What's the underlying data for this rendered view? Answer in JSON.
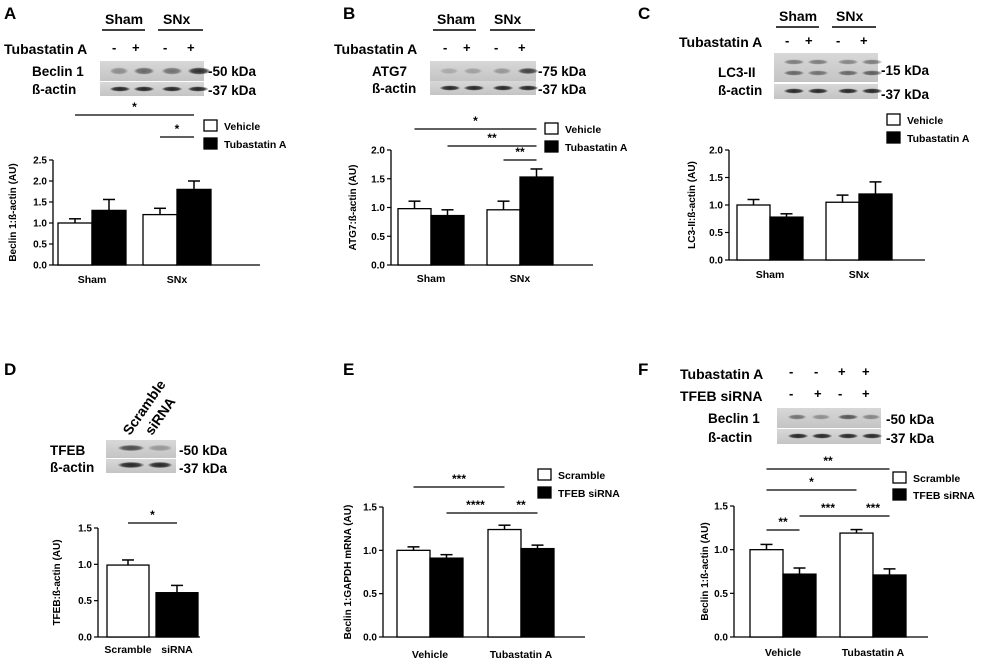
{
  "units": {
    "kda_50": "-50 kDa",
    "kda_37": "-37 kDa",
    "kda_75": "-75 kDa",
    "kda_15": "-15 kDa"
  },
  "blots": {
    "A": {
      "letter": "A",
      "group_left": "Sham",
      "group_right": "SNx",
      "treat_label": "Tubastatin A",
      "signs": [
        "-",
        "+",
        "-",
        "+"
      ],
      "band1": "Beclin 1",
      "band2": "ß-actin"
    },
    "B": {
      "letter": "B",
      "group_left": "Sham",
      "group_right": "SNx",
      "treat_label": "Tubastatin A",
      "signs": [
        "-",
        "+",
        "-",
        "+"
      ],
      "band1": "ATG7",
      "band2": "ß-actin"
    },
    "C": {
      "letter": "C",
      "group_left": "Sham",
      "group_right": "SNx",
      "treat_label": "Tubastatin A",
      "signs": [
        "-",
        "+",
        "-",
        "+"
      ],
      "band1": "LC3-II",
      "band2": "ß-actin"
    },
    "D": {
      "letter": "D",
      "lane1": "Scramble",
      "lane2": "siRNA",
      "band1": "TFEB",
      "band2": "ß-actin"
    },
    "E": {
      "letter": "E"
    },
    "F": {
      "letter": "F",
      "row1_label": "Tubastatin A",
      "row1_signs": [
        "-",
        "-",
        "+",
        "+"
      ],
      "row2_label": "TFEB siRNA",
      "row2_signs": [
        "-",
        "+",
        "-",
        "+"
      ],
      "band1": "Beclin 1",
      "band2": "ß-actin"
    }
  },
  "chart_data": [
    {
      "panel": "A",
      "type": "bar",
      "ylabel": "Beclin 1:ß-actin (AU)",
      "ylim": [
        0,
        2.5
      ],
      "yticks": [
        "0.0",
        "0.5",
        "1.0",
        "1.5",
        "2.0",
        "2.5"
      ],
      "yticks_num": [
        0,
        0.5,
        1,
        1.5,
        2,
        2.5
      ],
      "categories": [
        "Sham",
        "SNx"
      ],
      "series": [
        {
          "name": "Vehicle",
          "fill": "#ffffff",
          "values": [
            1.0,
            1.2
          ],
          "errors": [
            0.1,
            0.15
          ]
        },
        {
          "name": "Tubastatin A",
          "fill": "#000000",
          "values": [
            1.3,
            1.8
          ],
          "errors": [
            0.26,
            0.2
          ]
        }
      ],
      "significance": [
        {
          "from": [
            0,
            0
          ],
          "to": [
            1,
            1
          ],
          "label": "*"
        },
        {
          "from": [
            1,
            0
          ],
          "to": [
            1,
            1
          ],
          "label": "*"
        }
      ]
    },
    {
      "panel": "B",
      "type": "bar",
      "ylabel": "ATG7:ß-actin (AU)",
      "ylim": [
        0,
        2.0
      ],
      "yticks": [
        "0.0",
        "0.5",
        "1.0",
        "1.5",
        "2.0"
      ],
      "yticks_num": [
        0,
        0.5,
        1,
        1.5,
        2
      ],
      "categories": [
        "Sham",
        "SNx"
      ],
      "series": [
        {
          "name": "Vehicle",
          "fill": "#ffffff",
          "values": [
            0.98,
            0.96
          ],
          "errors": [
            0.13,
            0.15
          ]
        },
        {
          "name": "Tubastatin A",
          "fill": "#000000",
          "values": [
            0.86,
            1.53
          ],
          "errors": [
            0.1,
            0.14
          ]
        }
      ],
      "significance": [
        {
          "from": [
            0,
            0
          ],
          "to": [
            1,
            1
          ],
          "label": "*"
        },
        {
          "from": [
            0,
            1
          ],
          "to": [
            1,
            1
          ],
          "label": "**"
        },
        {
          "from": [
            1,
            0
          ],
          "to": [
            1,
            1
          ],
          "label": "**"
        }
      ]
    },
    {
      "panel": "C",
      "type": "bar",
      "ylabel": "LC3-II:ß-actin (AU)",
      "ylim": [
        0,
        2.0
      ],
      "yticks": [
        "0.0",
        "0.5",
        "1.0",
        "1.5",
        "2.0"
      ],
      "yticks_num": [
        0,
        0.5,
        1,
        1.5,
        2
      ],
      "categories": [
        "Sham",
        "SNx"
      ],
      "series": [
        {
          "name": "Vehicle",
          "fill": "#ffffff",
          "values": [
            1.0,
            1.05
          ],
          "errors": [
            0.1,
            0.13
          ]
        },
        {
          "name": "Tubastatin A",
          "fill": "#000000",
          "values": [
            0.78,
            1.2
          ],
          "errors": [
            0.06,
            0.22
          ]
        }
      ],
      "significance": []
    },
    {
      "panel": "D",
      "type": "bar",
      "ylabel": "TFEB:ß-actin (AU)",
      "ylim": [
        0,
        1.5
      ],
      "yticks": [
        "0.0",
        "0.5",
        "1.0",
        "1.5"
      ],
      "yticks_num": [
        0,
        0.5,
        1,
        1.5
      ],
      "categories": [
        "Scramble",
        "siRNA"
      ],
      "series": [
        {
          "name": "",
          "fill": [
            "#ffffff",
            "#000000"
          ],
          "values": [
            0.99,
            0.61
          ],
          "errors": [
            0.07,
            0.1
          ]
        }
      ],
      "significance": [
        {
          "from": [
            0,
            0
          ],
          "to": [
            0,
            1
          ],
          "label": "*"
        }
      ]
    },
    {
      "panel": "E",
      "type": "bar",
      "ylabel": "Beclin 1:GAPDH mRNA (AU)",
      "ylim": [
        0,
        1.5
      ],
      "yticks": [
        "0.0",
        "0.5",
        "1.0",
        "1.5"
      ],
      "yticks_num": [
        0,
        0.5,
        1,
        1.5
      ],
      "categories": [
        "Vehicle",
        "Tubastatin A"
      ],
      "series": [
        {
          "name": "Scramble",
          "fill": "#ffffff",
          "values": [
            1.0,
            1.24
          ],
          "errors": [
            0.04,
            0.05
          ]
        },
        {
          "name": "TFEB siRNA",
          "fill": "#000000",
          "values": [
            0.91,
            1.02
          ],
          "errors": [
            0.04,
            0.04
          ]
        }
      ],
      "significance": [
        {
          "from": [
            0,
            0
          ],
          "to": [
            1,
            0
          ],
          "label": "***"
        },
        {
          "from": [
            0,
            1
          ],
          "to": [
            1,
            0
          ],
          "label": "****"
        },
        {
          "from": [
            1,
            0
          ],
          "to": [
            1,
            1
          ],
          "label": "**"
        }
      ]
    },
    {
      "panel": "F",
      "type": "bar",
      "ylabel": "Beclin 1:ß-actin (AU)",
      "ylim": [
        0,
        1.5
      ],
      "yticks": [
        "0.0",
        "0.5",
        "1.0",
        "1.5"
      ],
      "yticks_num": [
        0,
        0.5,
        1,
        1.5
      ],
      "categories": [
        "Vehicle",
        "Tubastatin A"
      ],
      "series": [
        {
          "name": "Scramble",
          "fill": "#ffffff",
          "values": [
            1.0,
            1.19
          ],
          "errors": [
            0.06,
            0.04
          ]
        },
        {
          "name": "TFEB siRNA",
          "fill": "#000000",
          "values": [
            0.72,
            0.71
          ],
          "errors": [
            0.07,
            0.07
          ]
        }
      ],
      "significance": [
        {
          "from": [
            0,
            0
          ],
          "to": [
            1,
            1
          ],
          "label": "**"
        },
        {
          "from": [
            0,
            0
          ],
          "to": [
            1,
            0
          ],
          "label": "*"
        },
        {
          "from": [
            0,
            0
          ],
          "to": [
            0,
            1
          ],
          "label": "**"
        },
        {
          "from": [
            0,
            1
          ],
          "to": [
            1,
            0
          ],
          "label": "***"
        },
        {
          "from": [
            1,
            0
          ],
          "to": [
            1,
            1
          ],
          "label": "***"
        }
      ]
    }
  ]
}
